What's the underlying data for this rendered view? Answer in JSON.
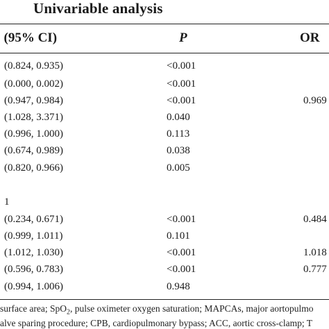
{
  "heading": "Univariable analysis",
  "columns": {
    "or_ci": ". (95% CI)",
    "p": "P",
    "or2": "OR"
  },
  "rows": [
    {
      "ci": "(0.824, 0.935)",
      "p": "<0.001",
      "or2": ""
    },
    {
      "ci": "(0.000, 0.002)",
      "p": "<0.001",
      "or2": ""
    },
    {
      "ci": "(0.947, 0.984)",
      "p": "<0.001",
      "or2": "0.969"
    },
    {
      "ci": "(1.028, 3.371)",
      "p": "0.040",
      "or2": ""
    },
    {
      "ci": "(0.996, 1.000)",
      "p": "0.113",
      "or2": ""
    },
    {
      "ci": "(0.674, 0.989)",
      "p": "0.038",
      "or2": ""
    },
    {
      "ci": "(0.820, 0.966)",
      "p": "0.005",
      "or2": ""
    },
    {
      "ci": "",
      "p": "",
      "or2": ""
    },
    {
      "ci": "1",
      "p": "",
      "or2": ""
    },
    {
      "ci": "(0.234, 0.671)",
      "p": "<0.001",
      "or2": "0.484"
    },
    {
      "ci": "(0.999, 1.011)",
      "p": "0.101",
      "or2": ""
    },
    {
      "ci": "(1.012, 1.030)",
      "p": "<0.001",
      "or2": "1.018"
    },
    {
      "ci": "(0.596, 0.783)",
      "p": "<0.001",
      "or2": "0.777"
    },
    {
      "ci": "(0.994, 1.006)",
      "p": "0.948",
      "or2": ""
    }
  ],
  "footnote": {
    "line1_pre": "surface area; SpO",
    "line1_sub": "2",
    "line1_post": ", pulse oximeter oxygen saturation; MAPCAs, major aortopulmo",
    "line2": "alve sparing procedure; CPB, cardiopulmonary bypass; ACC, aortic cross-clamp; T"
  }
}
